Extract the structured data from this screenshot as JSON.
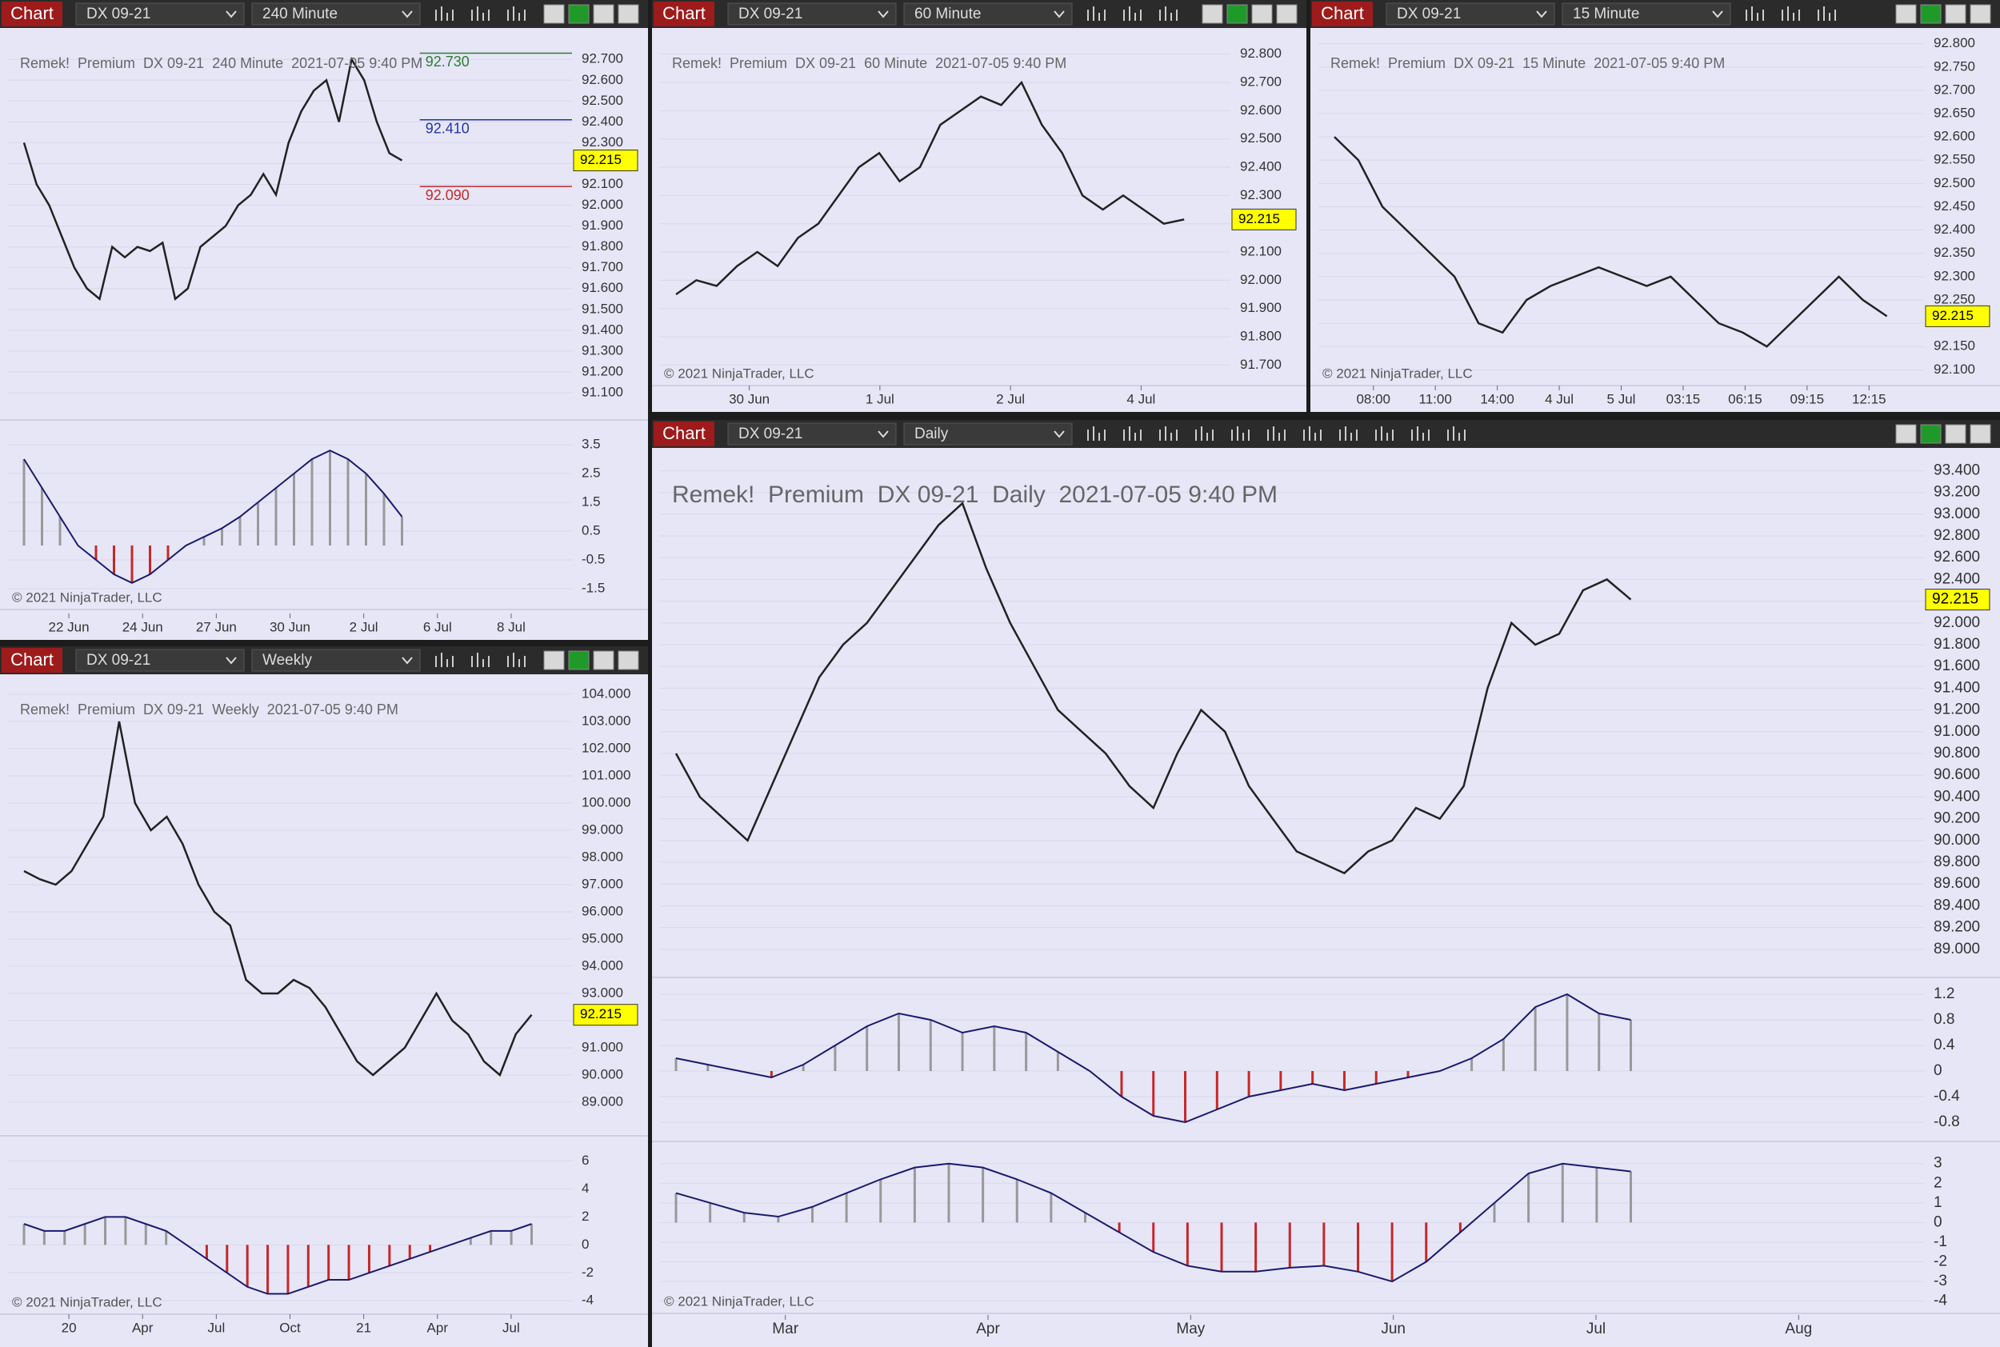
{
  "panels": [
    {
      "tab": "Chart",
      "instrument": "DX 09-21",
      "interval": "240 Minute",
      "caption": "Remek!  Premium  DX 09-21  240 Minute  2021-07-05 9:40 PM",
      "copyright": "© 2021 NinjaTrader, LLC",
      "last_price": "92.215",
      "price_lim": [
        91.0,
        92.82
      ],
      "price_ticks": [
        "92.700",
        "92.600",
        "92.500",
        "92.400",
        "92.300",
        "92.200",
        "92.100",
        "92.000",
        "91.900",
        "91.800",
        "91.700",
        "91.600",
        "91.500",
        "91.400",
        "91.300",
        "91.200",
        "91.100"
      ],
      "closes": [
        92.3,
        92.1,
        92.0,
        91.85,
        91.7,
        91.6,
        91.55,
        91.8,
        91.75,
        91.8,
        91.78,
        91.82,
        91.55,
        91.6,
        91.8,
        91.85,
        91.9,
        92.0,
        92.05,
        92.15,
        92.05,
        92.3,
        92.45,
        92.55,
        92.6,
        92.4,
        92.7,
        92.6,
        92.4,
        92.25,
        92.215
      ],
      "levels": [
        {
          "label": "92.730",
          "color": "#2e7d32"
        },
        {
          "label": "92.410",
          "color": "#2233aa"
        },
        {
          "label": "92.090",
          "color": "#c62828"
        }
      ],
      "osc_lim": [
        -2.0,
        4.0
      ],
      "osc_ticks": [
        "3.5",
        "2.5",
        "1.5",
        "0.5",
        "-0.5",
        "-1.5"
      ],
      "osc": [
        3.0,
        2.0,
        1.0,
        0,
        -0.5,
        -1.0,
        -1.3,
        -1.0,
        -0.5,
        0,
        0.3,
        0.6,
        1.0,
        1.5,
        2.0,
        2.5,
        3.0,
        3.3,
        3.0,
        2.5,
        1.8,
        1.0
      ],
      "dates": [
        "22 Jun",
        "24 Jun",
        "27 Jun",
        "30 Jun",
        "2 Jul",
        "6 Jul",
        "8 Jul"
      ]
    },
    {
      "tab": "Chart",
      "instrument": "DX 09-21",
      "interval": "60 Minute",
      "caption": "Remek!  Premium  DX 09-21  60 Minute  2021-07-05 9:40 PM",
      "copyright": "© 2021 NinjaTrader, LLC",
      "last_price": "92.215",
      "price_lim": [
        91.65,
        92.87
      ],
      "price_ticks": [
        "92.800",
        "92.700",
        "92.600",
        "92.500",
        "92.400",
        "92.300",
        "92.200",
        "92.100",
        "92.000",
        "91.900",
        "91.800",
        "91.700"
      ],
      "closes": [
        91.95,
        92.0,
        91.98,
        92.05,
        92.1,
        92.05,
        92.15,
        92.2,
        92.3,
        92.4,
        92.45,
        92.35,
        92.4,
        92.55,
        92.6,
        92.65,
        92.62,
        92.7,
        92.55,
        92.45,
        92.3,
        92.25,
        92.3,
        92.25,
        92.2,
        92.215
      ],
      "dates": [
        "30 Jun",
        "1 Jul",
        "2 Jul",
        "4 Jul"
      ]
    },
    {
      "tab": "Chart",
      "instrument": "DX 09-21",
      "interval": "15 Minute",
      "caption": "Remek!  Premium  DX 09-21  15 Minute  2021-07-05 9:40 PM",
      "copyright": "© 2021 NinjaTrader, LLC",
      "last_price": "92.215",
      "price_lim": [
        92.08,
        92.82
      ],
      "price_ticks": [
        "92.800",
        "92.750",
        "92.700",
        "92.650",
        "92.600",
        "92.550",
        "92.500",
        "92.450",
        "92.400",
        "92.350",
        "92.300",
        "92.250",
        "92.200",
        "92.150",
        "92.100"
      ],
      "closes": [
        92.6,
        92.55,
        92.45,
        92.4,
        92.35,
        92.3,
        92.2,
        92.18,
        92.25,
        92.28,
        92.3,
        92.32,
        92.3,
        92.28,
        92.3,
        92.25,
        92.2,
        92.18,
        92.15,
        92.2,
        92.25,
        92.3,
        92.25,
        92.215
      ],
      "dates": [
        "08:00",
        "11:00",
        "14:00",
        "4 Jul",
        "5 Jul",
        "03:15",
        "06:15",
        "09:15",
        "12:15"
      ]
    },
    {
      "tab": "Chart",
      "instrument": "DX 09-21",
      "interval": "Weekly",
      "caption": "Remek!  Premium  DX 09-21  Weekly  2021-07-05 9:40 PM",
      "copyright": "© 2021 NinjaTrader, LLC",
      "last_price": "92.215",
      "price_lim": [
        88.0,
        104.5
      ],
      "price_ticks": [
        "104.000",
        "103.000",
        "102.000",
        "101.000",
        "100.000",
        "99.000",
        "98.000",
        "97.000",
        "96.000",
        "95.000",
        "94.000",
        "93.000",
        "92.000",
        "91.000",
        "90.000",
        "89.000"
      ],
      "closes": [
        97.5,
        97.2,
        97.0,
        97.5,
        98.5,
        99.5,
        103.0,
        100.0,
        99.0,
        99.5,
        98.5,
        97.0,
        96.0,
        95.5,
        93.5,
        93.0,
        93.0,
        93.5,
        93.2,
        92.5,
        91.5,
        90.5,
        90.0,
        90.5,
        91.0,
        92.0,
        93.0,
        92.0,
        91.5,
        90.5,
        90.0,
        91.5,
        92.215
      ],
      "osc_lim": [
        -4.5,
        7.0
      ],
      "osc_ticks": [
        "6",
        "4",
        "2",
        "0",
        "-2",
        "-4"
      ],
      "osc": [
        1.5,
        1,
        1,
        1.5,
        2,
        2,
        1.5,
        1,
        0,
        -1,
        -2,
        -3,
        -3.5,
        -3.5,
        -3,
        -2.5,
        -2.5,
        -2,
        -1.5,
        -1,
        -0.5,
        0,
        0.5,
        1,
        1,
        1.5
      ],
      "dates": [
        "20",
        "Apr",
        "Jul",
        "Oct",
        "21",
        "Apr",
        "Jul"
      ]
    },
    {
      "tab": "Chart",
      "instrument": "DX 09-21",
      "interval": "Daily",
      "caption": "Remek!  Premium  DX 09-21  Daily  2021-07-05 9:40 PM",
      "copyright": "© 2021 NinjaTrader, LLC",
      "last_price": "92.215",
      "price_lim": [
        88.8,
        93.55
      ],
      "price_ticks": [
        "93.400",
        "93.200",
        "93.000",
        "92.800",
        "92.600",
        "92.400",
        "92.200",
        "92.000",
        "91.800",
        "91.600",
        "91.400",
        "91.200",
        "91.000",
        "90.800",
        "90.600",
        "90.400",
        "90.200",
        "90.000",
        "89.800",
        "89.600",
        "89.400",
        "89.200",
        "89.000"
      ],
      "closes": [
        90.8,
        90.4,
        90.2,
        90.0,
        90.5,
        91.0,
        91.5,
        91.8,
        92.0,
        92.3,
        92.6,
        92.9,
        93.1,
        92.5,
        92.0,
        91.6,
        91.2,
        91.0,
        90.8,
        90.5,
        90.3,
        90.8,
        91.2,
        91.0,
        90.5,
        90.2,
        89.9,
        89.8,
        89.7,
        89.9,
        90.0,
        90.3,
        90.2,
        90.5,
        91.4,
        92.0,
        91.8,
        91.9,
        92.3,
        92.4,
        92.215
      ],
      "osc_lim": [
        -1.0,
        1.3
      ],
      "osc_ticks": [
        "1.2",
        "0.8",
        "0.4",
        "0",
        "-0.4",
        "-0.8"
      ],
      "osc": [
        0.2,
        0.1,
        0,
        -0.1,
        0.1,
        0.4,
        0.7,
        0.9,
        0.8,
        0.6,
        0.7,
        0.6,
        0.3,
        0,
        -0.4,
        -0.7,
        -0.8,
        -0.6,
        -0.4,
        -0.3,
        -0.2,
        -0.3,
        -0.2,
        -0.1,
        0,
        0.2,
        0.5,
        1.0,
        1.2,
        0.9,
        0.8
      ],
      "osc2_lim": [
        -4.3,
        3.6
      ],
      "osc2_ticks": [
        "3",
        "2",
        "1",
        "0",
        "-1",
        "-2",
        "-3",
        "-4"
      ],
      "osc2": [
        1.5,
        1.0,
        0.5,
        0.3,
        0.8,
        1.5,
        2.2,
        2.8,
        3.0,
        2.8,
        2.2,
        1.5,
        0.5,
        -0.5,
        -1.5,
        -2.2,
        -2.5,
        -2.5,
        -2.3,
        -2.2,
        -2.5,
        -3.0,
        -2.0,
        -0.5,
        1.0,
        2.5,
        3.0,
        2.8,
        2.6
      ],
      "dates": [
        "Mar",
        "Apr",
        "May",
        "Jun",
        "Jul",
        "Aug"
      ]
    }
  ]
}
